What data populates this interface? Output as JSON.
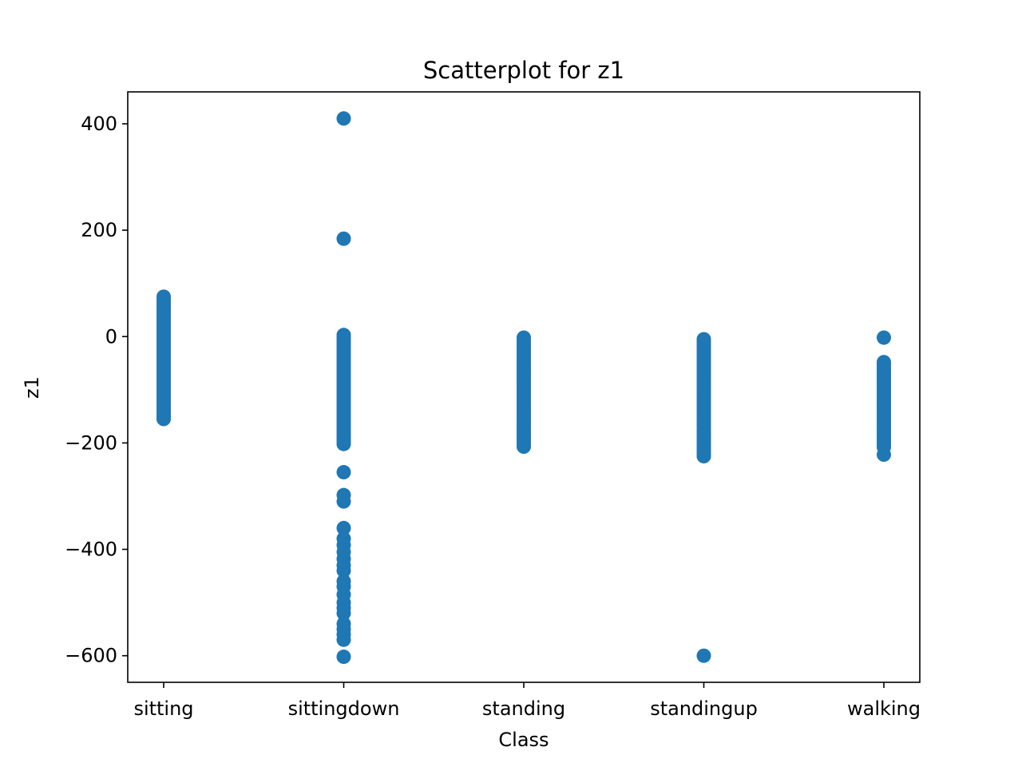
{
  "chart_data": {
    "type": "scatter",
    "title": "Scatterplot for z1",
    "xlabel": "Class",
    "ylabel": "z1",
    "categories": [
      "sitting",
      "sittingdown",
      "standing",
      "standingup",
      "walking"
    ],
    "ylim": [
      -650,
      460
    ],
    "yticks": [
      400,
      200,
      0,
      -200,
      -400,
      -600
    ],
    "ytick_labels": [
      "400",
      "200",
      "0",
      "−200",
      "−400",
      "−600"
    ],
    "grid": false,
    "marker_color": "#1f77b4",
    "series": [
      {
        "category": "sitting",
        "values": [
          75,
          70,
          65,
          60,
          55,
          50,
          45,
          40,
          35,
          30,
          25,
          20,
          15,
          10,
          5,
          0,
          -5,
          -10,
          -15,
          -20,
          -25,
          -30,
          -35,
          -40,
          -45,
          -50,
          -55,
          -60,
          -65,
          -70,
          -75,
          -80,
          -85,
          -90,
          -95,
          -100,
          -105,
          -110,
          -115,
          -120,
          -125,
          -130,
          -135,
          -140,
          -145,
          -150,
          -155
        ]
      },
      {
        "category": "sittingdown",
        "values": [
          410,
          184,
          3,
          -2,
          -7,
          -12,
          -17,
          -22,
          -27,
          -32,
          -37,
          -42,
          -47,
          -52,
          -57,
          -62,
          -67,
          -72,
          -77,
          -82,
          -87,
          -92,
          -97,
          -102,
          -107,
          -112,
          -117,
          -122,
          -127,
          -132,
          -137,
          -142,
          -147,
          -152,
          -157,
          -162,
          -167,
          -172,
          -177,
          -182,
          -187,
          -192,
          -197,
          -202,
          -255,
          -298,
          -310,
          -360,
          -380,
          -392,
          -405,
          -418,
          -430,
          -440,
          -460,
          -470,
          -485,
          -500,
          -510,
          -520,
          -540,
          -550,
          -560,
          -570,
          -602
        ]
      },
      {
        "category": "standing",
        "values": [
          -2,
          -7,
          -12,
          -17,
          -22,
          -27,
          -32,
          -37,
          -42,
          -47,
          -52,
          -57,
          -62,
          -67,
          -72,
          -77,
          -82,
          -87,
          -92,
          -97,
          -102,
          -107,
          -112,
          -117,
          -122,
          -127,
          -132,
          -137,
          -142,
          -147,
          -152,
          -157,
          -162,
          -167,
          -172,
          -177,
          -182,
          -187,
          -192,
          -197,
          -202,
          -207
        ]
      },
      {
        "category": "standingup",
        "values": [
          -5,
          -10,
          -15,
          -20,
          -25,
          -30,
          -35,
          -40,
          -45,
          -50,
          -55,
          -60,
          -65,
          -70,
          -75,
          -80,
          -85,
          -90,
          -95,
          -100,
          -105,
          -110,
          -115,
          -120,
          -125,
          -130,
          -135,
          -140,
          -145,
          -150,
          -155,
          -160,
          -165,
          -170,
          -175,
          -180,
          -185,
          -190,
          -195,
          -200,
          -205,
          -210,
          -215,
          -220,
          -225,
          -600
        ]
      },
      {
        "category": "walking",
        "values": [
          -2,
          -48,
          -53,
          -58,
          -63,
          -68,
          -73,
          -78,
          -83,
          -88,
          -93,
          -98,
          -103,
          -108,
          -113,
          -118,
          -123,
          -128,
          -133,
          -138,
          -143,
          -148,
          -153,
          -158,
          -163,
          -168,
          -173,
          -178,
          -183,
          -188,
          -193,
          -198,
          -203,
          -208,
          -222
        ]
      }
    ]
  }
}
